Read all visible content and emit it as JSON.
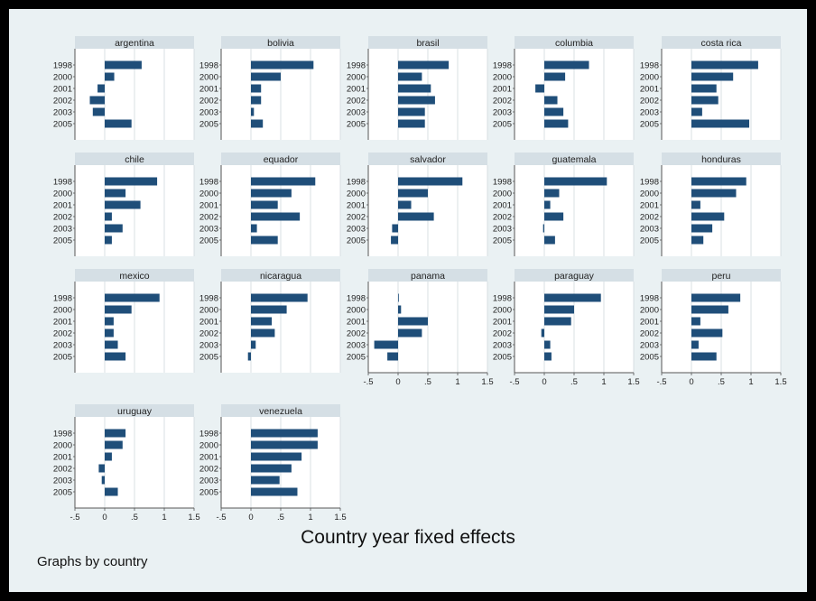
{
  "colors": {
    "bar": "#1f4e79",
    "panel_bg": "#ffffff",
    "header_bg": "#d5dfe5",
    "grid": "#d0d8dc",
    "page_bg": "#eaf1f3"
  },
  "x_tick_labels": [
    "-.5",
    "0",
    ".5",
    "1",
    "1.5"
  ],
  "title": "Country year fixed effects",
  "note": "Graphs by country",
  "chart_data": {
    "type": "bar",
    "orientation": "horizontal",
    "title": "Country year fixed effects",
    "note": "Graphs by country",
    "categories": [
      "1998",
      "2000",
      "2001",
      "2002",
      "2003",
      "2005"
    ],
    "xlim": [
      -0.5,
      1.5
    ],
    "xticks": [
      -0.5,
      0,
      0.5,
      1,
      1.5
    ],
    "grid": "vertical",
    "panels": [
      {
        "name": "argentina",
        "values": [
          0.62,
          0.16,
          -0.12,
          -0.25,
          -0.2,
          0.45
        ]
      },
      {
        "name": "bolivia",
        "values": [
          1.05,
          0.5,
          0.17,
          0.17,
          0.05,
          0.2
        ]
      },
      {
        "name": "brasil",
        "values": [
          0.85,
          0.4,
          0.55,
          0.62,
          0.45,
          0.45
        ]
      },
      {
        "name": "columbia",
        "values": [
          0.75,
          0.35,
          -0.15,
          0.22,
          0.32,
          0.4
        ]
      },
      {
        "name": "costa rica",
        "values": [
          1.12,
          0.7,
          0.42,
          0.45,
          0.18,
          0.97
        ]
      },
      {
        "name": "chile",
        "values": [
          0.88,
          0.35,
          0.6,
          0.12,
          0.3,
          0.12
        ]
      },
      {
        "name": "equador",
        "values": [
          1.08,
          0.68,
          0.45,
          0.82,
          0.1,
          0.45
        ]
      },
      {
        "name": "salvador",
        "values": [
          1.08,
          0.5,
          0.22,
          0.6,
          -0.1,
          -0.12
        ]
      },
      {
        "name": "guatemala",
        "values": [
          1.05,
          0.25,
          0.1,
          0.32,
          -0.02,
          0.18
        ]
      },
      {
        "name": "honduras",
        "values": [
          0.92,
          0.75,
          0.15,
          0.55,
          0.35,
          0.2
        ]
      },
      {
        "name": "mexico",
        "values": [
          0.92,
          0.45,
          0.15,
          0.15,
          0.22,
          0.35
        ]
      },
      {
        "name": "nicaragua",
        "values": [
          0.95,
          0.6,
          0.35,
          0.4,
          0.08,
          -0.05
        ]
      },
      {
        "name": "panama",
        "values": [
          0.01,
          0.05,
          0.5,
          0.4,
          -0.4,
          -0.18
        ]
      },
      {
        "name": "paraguay",
        "values": [
          0.95,
          0.5,
          0.45,
          -0.05,
          0.1,
          0.12
        ]
      },
      {
        "name": "peru",
        "values": [
          0.82,
          0.62,
          0.15,
          0.52,
          0.12,
          0.42
        ]
      },
      {
        "name": "uruguay",
        "values": [
          0.35,
          0.3,
          0.12,
          -0.1,
          -0.05,
          0.22
        ]
      },
      {
        "name": "venezuela",
        "values": [
          1.12,
          1.12,
          0.85,
          0.68,
          0.48,
          0.78
        ]
      }
    ]
  }
}
